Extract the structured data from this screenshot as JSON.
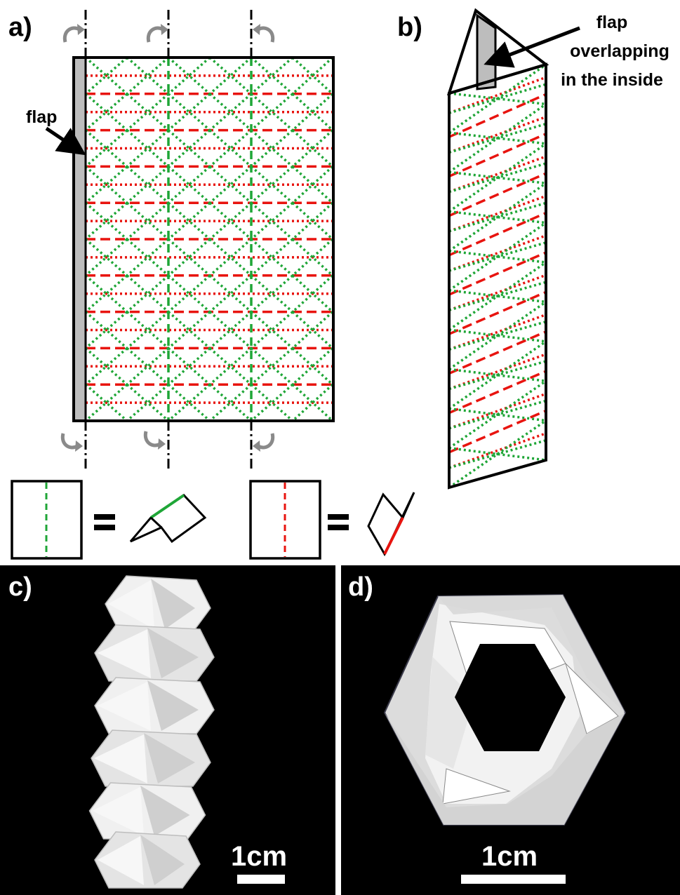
{
  "panels": {
    "a": {
      "label": "a)",
      "flap_label": "flap"
    },
    "b": {
      "label": "b)",
      "annotation_lines": [
        "flap",
        "overlapping",
        "in the inside"
      ]
    },
    "c": {
      "label": "c)",
      "scale_label": "1cm"
    },
    "d": {
      "label": "d)",
      "scale_label": "1cm"
    }
  },
  "legend": {
    "equals_symbol": "="
  },
  "colors": {
    "valley_fold": "#1fa637",
    "mountain_fold": "#e8140f",
    "flap_fill": "#bdbdbd",
    "rotation_arrow": "#8a8a8a",
    "photo_background": "#000000",
    "paper": "#e9e9e9"
  },
  "icons": [
    "rotation-arrow-icon",
    "flap-arrow-icon",
    "valley-fold-icon",
    "mountain-fold-icon"
  ]
}
